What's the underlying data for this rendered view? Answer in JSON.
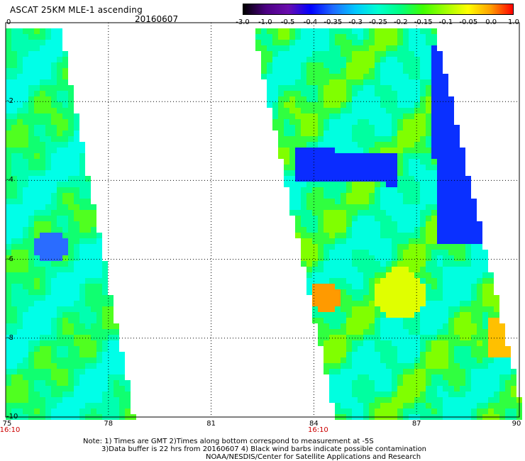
{
  "header": {
    "title": "ASCAT 25KM MLE-1 ascending",
    "date": "20160607"
  },
  "colorbar": {
    "labels": [
      "-3.0",
      "-1.0",
      "-0.5",
      "-0.4",
      "-0.35",
      "-0.3",
      "-0.25",
      "-0.2",
      "-0.15",
      "-0.1",
      "-0.05",
      "0.0",
      "1.0"
    ],
    "colors": [
      "#000000",
      "#4b0082",
      "#6a0dad",
      "#0000ff",
      "#1e6bff",
      "#00c8ff",
      "#00ffd0",
      "#00ff80",
      "#40ff00",
      "#a0ff00",
      "#ffff00",
      "#ffa000",
      "#ff0000"
    ]
  },
  "map": {
    "x_ticks": [
      "75",
      "78",
      "81",
      "84",
      "87",
      "90"
    ],
    "y_ticks": [
      "0",
      "-2",
      "-4",
      "-6",
      "-8",
      "-10"
    ],
    "lon_range": [
      75,
      90
    ],
    "lat_range": [
      -10,
      0
    ],
    "grid": true,
    "swath_times": [
      {
        "lon": 75,
        "label": "16:10"
      },
      {
        "lon": 84,
        "label": "16:10"
      }
    ]
  },
  "notes": {
    "line1": "Note: 1) Times are GMT 2)Times along bottom correspond to measurement at -5S",
    "line2": "3)Data buffer is 22 hrs from 20160607 4) Black wind barbs indicate possible contamination",
    "line3": "NOAA/NESDIS/Center for Satellite Applications and Research"
  }
}
